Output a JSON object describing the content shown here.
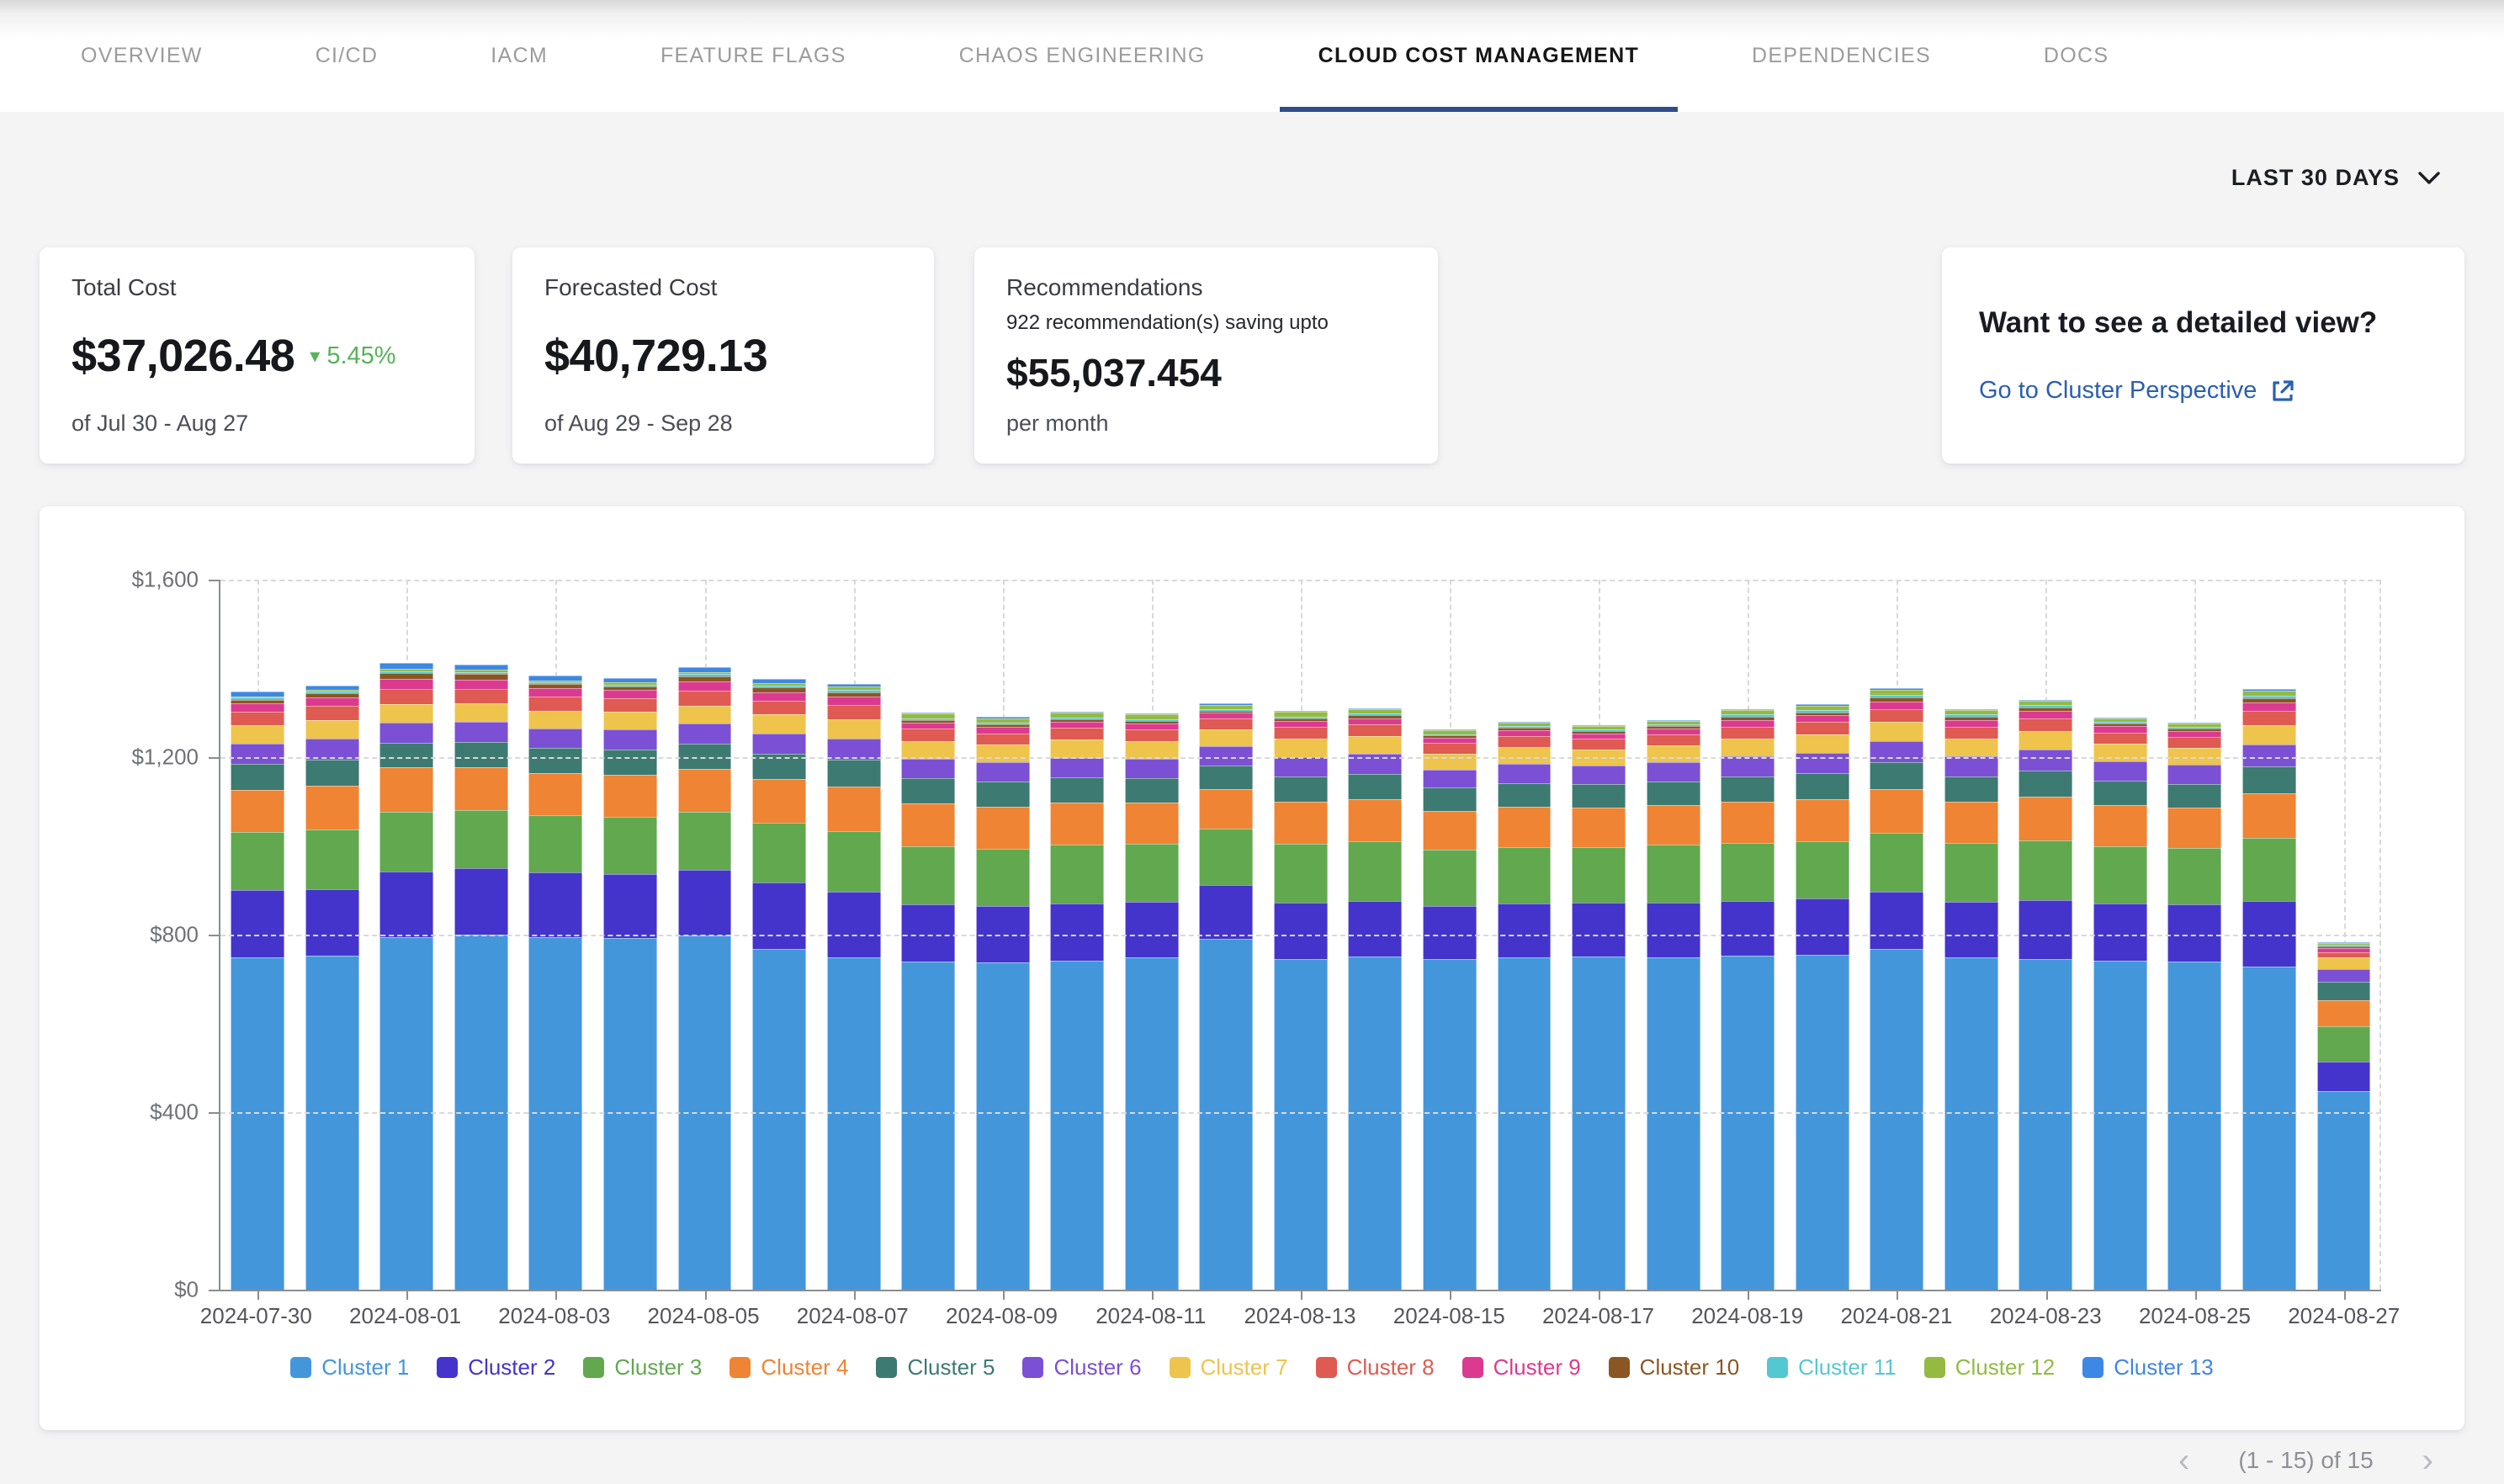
{
  "nav": {
    "tabs": [
      {
        "label": "OVERVIEW",
        "active": false
      },
      {
        "label": "CI/CD",
        "active": false
      },
      {
        "label": "IACM",
        "active": false
      },
      {
        "label": "FEATURE FLAGS",
        "active": false
      },
      {
        "label": "CHAOS ENGINEERING",
        "active": false
      },
      {
        "label": "CLOUD COST MANAGEMENT",
        "active": true
      },
      {
        "label": "DEPENDENCIES",
        "active": false
      },
      {
        "label": "DOCS",
        "active": false
      }
    ],
    "active_underline_color": "#2f4c8a"
  },
  "time_range": {
    "label": "LAST 30 DAYS",
    "icon": "chevron-down-icon"
  },
  "cards": {
    "total_cost": {
      "title": "Total Cost",
      "value": "$37,026.48",
      "delta_direction": "down",
      "delta_icon": "▾",
      "delta": "5.45%",
      "delta_color": "#57b258",
      "period": "of Jul 30 - Aug 27"
    },
    "forecasted_cost": {
      "title": "Forecasted Cost",
      "value": "$40,729.13",
      "period": "of Aug 29 - Sep 28"
    },
    "recommendations": {
      "title": "Recommendations",
      "subtitle": "922 recommendation(s) saving upto",
      "value": "$55,037.454",
      "period": "per month"
    },
    "detail_view": {
      "title": "Want to see a detailed view?",
      "link_label": "Go to Cluster Perspective",
      "link_icon": "external-link-icon",
      "link_color": "#2b5fb0"
    }
  },
  "chart_data": {
    "type": "bar",
    "stacked": true,
    "title": "",
    "xlabel": "",
    "ylabel": "",
    "ylim": [
      0,
      1600
    ],
    "ytick_labels": [
      "$0",
      "$400",
      "$800",
      "$1,200",
      "$1,600"
    ],
    "grid": true,
    "legend_position": "bottom",
    "categories": [
      "2024-07-30",
      "2024-07-31",
      "2024-08-01",
      "2024-08-02",
      "2024-08-03",
      "2024-08-04",
      "2024-08-05",
      "2024-08-06",
      "2024-08-07",
      "2024-08-08",
      "2024-08-09",
      "2024-08-10",
      "2024-08-11",
      "2024-08-12",
      "2024-08-13",
      "2024-08-14",
      "2024-08-15",
      "2024-08-16",
      "2024-08-17",
      "2024-08-18",
      "2024-08-19",
      "2024-08-20",
      "2024-08-21",
      "2024-08-22",
      "2024-08-23",
      "2024-08-24",
      "2024-08-25",
      "2024-08-26",
      "2024-08-27"
    ],
    "x_tick_labels": [
      "2024-07-30",
      "2024-08-01",
      "2024-08-03",
      "2024-08-05",
      "2024-08-07",
      "2024-08-09",
      "2024-08-11",
      "2024-08-13",
      "2024-08-15",
      "2024-08-17",
      "2024-08-19",
      "2024-08-21",
      "2024-08-23",
      "2024-08-25",
      "2024-08-27"
    ],
    "series": [
      {
        "name": "Cluster 1",
        "color": "#4496db",
        "values": [
          748,
          752,
          795,
          800,
          795,
          792,
          798,
          768,
          748,
          740,
          738,
          742,
          748,
          790,
          745,
          750,
          745,
          748,
          750,
          748,
          752,
          755,
          768,
          748,
          745,
          742,
          740,
          728,
          448
        ]
      },
      {
        "name": "Cluster 2",
        "color": "#4434cc",
        "values": [
          152,
          150,
          148,
          150,
          146,
          144,
          148,
          150,
          148,
          128,
          126,
          128,
          126,
          122,
          128,
          126,
          120,
          122,
          122,
          124,
          124,
          126,
          128,
          126,
          132,
          128,
          128,
          148,
          65
        ]
      },
      {
        "name": "Cluster 3",
        "color": "#61a84f",
        "values": [
          132,
          135,
          134,
          130,
          128,
          130,
          130,
          134,
          138,
          132,
          130,
          132,
          130,
          126,
          132,
          134,
          126,
          128,
          126,
          130,
          130,
          130,
          134,
          132,
          136,
          130,
          128,
          142,
          80
        ]
      },
      {
        "name": "Cluster 4",
        "color": "#ee8434",
        "values": [
          95,
          98,
          100,
          98,
          95,
          94,
          98,
          98,
          100,
          95,
          94,
          95,
          93,
          90,
          94,
          95,
          88,
          90,
          88,
          90,
          94,
          95,
          98,
          94,
          98,
          92,
          90,
          100,
          60
        ]
      },
      {
        "name": "Cluster 5",
        "color": "#3d7a72",
        "values": [
          58,
          60,
          56,
          56,
          56,
          57,
          56,
          58,
          60,
          57,
          57,
          57,
          56,
          54,
          57,
          57,
          52,
          54,
          53,
          54,
          57,
          58,
          60,
          57,
          59,
          55,
          54,
          62,
          40
        ]
      },
      {
        "name": "Cluster 6",
        "color": "#7b50d5",
        "values": [
          46,
          47,
          45,
          45,
          45,
          46,
          45,
          46,
          48,
          45,
          44,
          45,
          44,
          42,
          45,
          45,
          41,
          43,
          42,
          43,
          45,
          46,
          48,
          45,
          47,
          44,
          43,
          49,
          30
        ]
      },
      {
        "name": "Cluster 7",
        "color": "#eec44c",
        "values": [
          41,
          41,
          42,
          42,
          40,
          40,
          41,
          42,
          43,
          40,
          39,
          40,
          39,
          38,
          40,
          40,
          36,
          38,
          37,
          38,
          40,
          41,
          43,
          40,
          42,
          39,
          38,
          44,
          25
        ]
      },
      {
        "name": "Cluster 8",
        "color": "#df5a52",
        "values": [
          31,
          32,
          34,
          33,
          31,
          30,
          33,
          32,
          33,
          27,
          26,
          27,
          26,
          25,
          27,
          27,
          24,
          25,
          24,
          25,
          27,
          28,
          30,
          27,
          29,
          26,
          25,
          32,
          12
        ]
      },
      {
        "name": "Cluster 9",
        "color": "#dc3a90",
        "values": [
          18,
          19,
          22,
          21,
          19,
          18,
          21,
          19,
          19,
          14,
          14,
          14,
          14,
          13,
          14,
          14,
          12,
          13,
          12,
          13,
          15,
          15,
          17,
          15,
          16,
          14,
          13,
          18,
          9
        ]
      },
      {
        "name": "Cluster 10",
        "color": "#8a5724",
        "values": [
          9,
          10,
          13,
          12,
          10,
          9,
          12,
          10,
          10,
          6,
          6,
          6,
          6,
          5,
          6,
          6,
          5,
          5,
          5,
          5,
          7,
          7,
          9,
          7,
          8,
          6,
          5,
          9,
          4
        ]
      },
      {
        "name": "Cluster 11",
        "color": "#54c8d2",
        "values": [
          4,
          4,
          5,
          5,
          4,
          4,
          5,
          4,
          4,
          4,
          4,
          4,
          4,
          4,
          4,
          4,
          3,
          4,
          3,
          4,
          5,
          5,
          6,
          5,
          5,
          4,
          4,
          6,
          5
        ]
      },
      {
        "name": "Cluster 12",
        "color": "#94ba41",
        "values": [
          3,
          3,
          5,
          5,
          4,
          4,
          4,
          6,
          8,
          10,
          10,
          10,
          10,
          9,
          10,
          10,
          8,
          8,
          8,
          8,
          10,
          10,
          11,
          10,
          10,
          8,
          8,
          11,
          4
        ]
      },
      {
        "name": "Cluster 13",
        "color": "#3d87e5",
        "values": [
          11,
          11,
          13,
          12,
          11,
          10,
          12,
          10,
          6,
          3,
          3,
          3,
          3,
          3,
          3,
          3,
          2,
          2,
          2,
          2,
          3,
          3,
          3,
          3,
          3,
          2,
          2,
          4,
          2
        ]
      }
    ]
  },
  "pagination": {
    "prev_icon": "chevron-left-icon",
    "label": "(1 - 15) of 15",
    "next_icon": "chevron-right-icon"
  }
}
